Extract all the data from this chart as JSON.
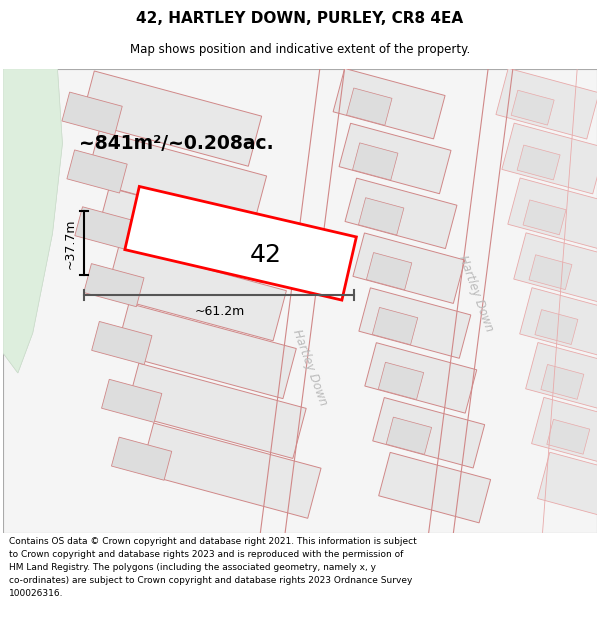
{
  "title": "42, HARTLEY DOWN, PURLEY, CR8 4EA",
  "subtitle": "Map shows position and indicative extent of the property.",
  "footer_line1": "Contains OS data © Crown copyright and database right 2021. This information is subject",
  "footer_line2": "to Crown copyright and database rights 2023 and is reproduced with the permission of",
  "footer_line3": "HM Land Registry. The polygons (including the associated geometry, namely x, y",
  "footer_line4": "co-ordinates) are subject to Crown copyright and database rights 2023 Ordnance Survey",
  "footer_line5": "100026316.",
  "map_bg": "#f5f5f5",
  "plot_fill": "#e8e8e8",
  "plot_border": "#d08888",
  "plot_border_light": "#e8aaaa",
  "highlight_fill": "#ffffff",
  "highlight_border": "#ff0000",
  "green_fill": "#ddeedd",
  "green_border": "#ccdccc",
  "road_label_color": "#bbbbbb",
  "area_text": "~841m²/~0.208ac.",
  "label_42": "42",
  "dim_width": "~61.2m",
  "dim_height": "~37.7m",
  "road_label": "Hartley Down",
  "road_label2": "Hartley Down"
}
